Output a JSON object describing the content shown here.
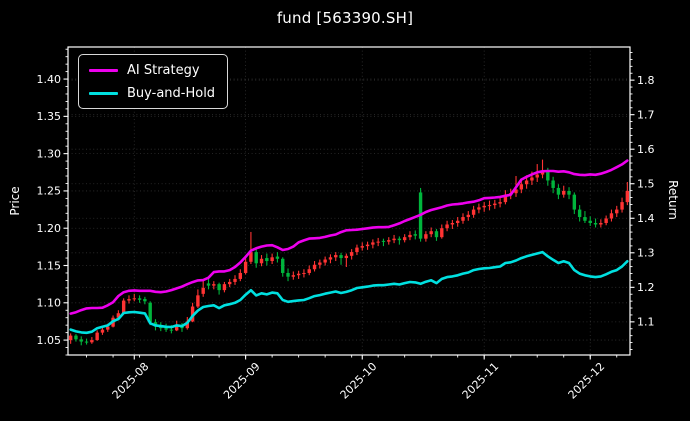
{
  "title": "fund [563390.SH]",
  "colors": {
    "background": "#000000",
    "ai_strategy": "#ed00ed",
    "buy_and_hold": "#00e0e0",
    "candle_up": "#ff3333",
    "candle_down": "#00b53c",
    "spine": "#ffffff",
    "grid": "#5a5a5a",
    "text": "#ffffff"
  },
  "legend": {
    "items": [
      {
        "label": "AI Strategy",
        "color": "#ed00ed"
      },
      {
        "label": "Buy-and-Hold",
        "color": "#00e0e0"
      }
    ]
  },
  "axes": {
    "left": {
      "label": "Price",
      "tick_labels": [
        "1.05",
        "1.10",
        "1.15",
        "1.20",
        "1.25",
        "1.30",
        "1.35",
        "1.40"
      ],
      "ticks": [
        1.05,
        1.1,
        1.15,
        1.2,
        1.25,
        1.3,
        1.35,
        1.4
      ],
      "lim": [
        1.03,
        1.443
      ]
    },
    "right": {
      "label": "Return",
      "tick_labels": [
        "1.1",
        "1.2",
        "1.3",
        "1.4",
        "1.5",
        "1.6",
        "1.7",
        "1.8"
      ],
      "ticks": [
        1.1,
        1.2,
        1.3,
        1.4,
        1.5,
        1.6,
        1.7,
        1.8
      ],
      "lim": [
        1.004,
        1.896
      ]
    },
    "x": {
      "tick_labels": [
        "2025-08",
        "2025-09",
        "2025-10",
        "2025-11",
        "2025-12"
      ],
      "tick_day_index": [
        12,
        33,
        55,
        78,
        98
      ]
    }
  },
  "chart_data": {
    "type": "candlestick+line",
    "title": "fund [563390.SH]",
    "xlabel": "",
    "ylabel_left": "Price",
    "ylabel_right": "Return",
    "grid": true,
    "legend_position": "upper-left",
    "x_dates": [
      "2025-07-16",
      "2025-07-17",
      "2025-07-18",
      "2025-07-21",
      "2025-07-22",
      "2025-07-23",
      "2025-07-24",
      "2025-07-25",
      "2025-07-28",
      "2025-07-29",
      "2025-07-30",
      "2025-07-31",
      "2025-08-01",
      "2025-08-04",
      "2025-08-05",
      "2025-08-06",
      "2025-08-07",
      "2025-08-08",
      "2025-08-11",
      "2025-08-12",
      "2025-08-13",
      "2025-08-14",
      "2025-08-15",
      "2025-08-18",
      "2025-08-19",
      "2025-08-20",
      "2025-08-21",
      "2025-08-22",
      "2025-08-25",
      "2025-08-26",
      "2025-08-27",
      "2025-08-28",
      "2025-08-29",
      "2025-09-01",
      "2025-09-02",
      "2025-09-03",
      "2025-09-04",
      "2025-09-05",
      "2025-09-08",
      "2025-09-09",
      "2025-09-10",
      "2025-09-11",
      "2025-09-12",
      "2025-09-15",
      "2025-09-16",
      "2025-09-17",
      "2025-09-18",
      "2025-09-19",
      "2025-09-22",
      "2025-09-23",
      "2025-09-24",
      "2025-09-25",
      "2025-09-26",
      "2025-09-29",
      "2025-09-30",
      "2025-10-01",
      "2025-10-02",
      "2025-10-03",
      "2025-10-06",
      "2025-10-07",
      "2025-10-08",
      "2025-10-09",
      "2025-10-10",
      "2025-10-13",
      "2025-10-14",
      "2025-10-15",
      "2025-10-16",
      "2025-10-17",
      "2025-10-20",
      "2025-10-21",
      "2025-10-22",
      "2025-10-23",
      "2025-10-24",
      "2025-10-27",
      "2025-10-28",
      "2025-10-29",
      "2025-10-30",
      "2025-10-31",
      "2025-11-03",
      "2025-11-04",
      "2025-11-05",
      "2025-11-06",
      "2025-11-07",
      "2025-11-10",
      "2025-11-11",
      "2025-11-12",
      "2025-11-13",
      "2025-11-14",
      "2025-11-17",
      "2025-11-18",
      "2025-11-19",
      "2025-11-20",
      "2025-11-21",
      "2025-11-24",
      "2025-11-25",
      "2025-11-26",
      "2025-11-27",
      "2025-11-28",
      "2025-12-01",
      "2025-12-02",
      "2025-12-03",
      "2025-12-04",
      "2025-12-05",
      "2025-12-08",
      "2025-12-09",
      "2025-12-10"
    ],
    "candles_ohlc": [
      [
        1.05,
        1.059,
        1.045,
        1.056
      ],
      [
        1.056,
        1.058,
        1.048,
        1.051
      ],
      [
        1.051,
        1.055,
        1.043,
        1.048
      ],
      [
        1.048,
        1.052,
        1.044,
        1.047
      ],
      [
        1.047,
        1.054,
        1.045,
        1.05
      ],
      [
        1.05,
        1.063,
        1.049,
        1.06
      ],
      [
        1.06,
        1.068,
        1.057,
        1.064
      ],
      [
        1.064,
        1.072,
        1.061,
        1.068
      ],
      [
        1.068,
        1.083,
        1.067,
        1.08
      ],
      [
        1.08,
        1.09,
        1.077,
        1.086
      ],
      [
        1.086,
        1.106,
        1.085,
        1.103
      ],
      [
        1.103,
        1.11,
        1.099,
        1.105
      ],
      [
        1.105,
        1.112,
        1.102,
        1.106
      ],
      [
        1.106,
        1.11,
        1.1,
        1.104
      ],
      [
        1.105,
        1.108,
        1.098,
        1.102
      ],
      [
        1.1,
        1.102,
        1.07,
        1.074
      ],
      [
        1.074,
        1.078,
        1.063,
        1.068
      ],
      [
        1.068,
        1.074,
        1.062,
        1.066
      ],
      [
        1.066,
        1.072,
        1.061,
        1.064
      ],
      [
        1.064,
        1.07,
        1.059,
        1.063
      ],
      [
        1.063,
        1.076,
        1.062,
        1.068
      ],
      [
        1.068,
        1.073,
        1.061,
        1.066
      ],
      [
        1.066,
        1.081,
        1.064,
        1.075
      ],
      [
        1.075,
        1.1,
        1.074,
        1.095
      ],
      [
        1.095,
        1.118,
        1.093,
        1.11
      ],
      [
        1.112,
        1.13,
        1.108,
        1.12
      ],
      [
        1.126,
        1.135,
        1.118,
        1.123
      ],
      [
        1.123,
        1.129,
        1.118,
        1.125
      ],
      [
        1.125,
        1.127,
        1.111,
        1.117
      ],
      [
        1.117,
        1.128,
        1.114,
        1.125
      ],
      [
        1.125,
        1.132,
        1.121,
        1.128
      ],
      [
        1.128,
        1.137,
        1.124,
        1.132
      ],
      [
        1.132,
        1.145,
        1.129,
        1.14
      ],
      [
        1.14,
        1.162,
        1.138,
        1.155
      ],
      [
        1.155,
        1.195,
        1.152,
        1.168
      ],
      [
        1.168,
        1.172,
        1.147,
        1.153
      ],
      [
        1.153,
        1.164,
        1.149,
        1.159
      ],
      [
        1.16,
        1.166,
        1.15,
        1.156
      ],
      [
        1.156,
        1.166,
        1.152,
        1.161
      ],
      [
        1.162,
        1.168,
        1.154,
        1.159
      ],
      [
        1.159,
        1.161,
        1.135,
        1.14
      ],
      [
        1.14,
        1.146,
        1.129,
        1.135
      ],
      [
        1.135,
        1.142,
        1.131,
        1.137
      ],
      [
        1.137,
        1.143,
        1.132,
        1.139
      ],
      [
        1.139,
        1.145,
        1.134,
        1.14
      ],
      [
        1.14,
        1.15,
        1.137,
        1.145
      ],
      [
        1.145,
        1.156,
        1.142,
        1.151
      ],
      [
        1.151,
        1.158,
        1.146,
        1.154
      ],
      [
        1.154,
        1.162,
        1.15,
        1.158
      ],
      [
        1.158,
        1.165,
        1.153,
        1.161
      ],
      [
        1.161,
        1.168,
        1.156,
        1.164
      ],
      [
        1.164,
        1.167,
        1.151,
        1.16
      ],
      [
        1.16,
        1.166,
        1.148,
        1.163
      ],
      [
        1.163,
        1.172,
        1.158,
        1.168
      ],
      [
        1.168,
        1.178,
        1.164,
        1.174
      ],
      [
        1.174,
        1.181,
        1.17,
        1.176
      ],
      [
        1.176,
        1.182,
        1.171,
        1.178
      ],
      [
        1.178,
        1.185,
        1.173,
        1.181
      ],
      [
        1.181,
        1.187,
        1.176,
        1.182
      ],
      [
        1.183,
        1.186,
        1.176,
        1.182
      ],
      [
        1.182,
        1.188,
        1.178,
        1.184
      ],
      [
        1.184,
        1.191,
        1.18,
        1.186
      ],
      [
        1.186,
        1.189,
        1.178,
        1.184
      ],
      [
        1.184,
        1.192,
        1.181,
        1.188
      ],
      [
        1.188,
        1.196,
        1.184,
        1.191
      ],
      [
        1.192,
        1.197,
        1.185,
        1.19
      ],
      [
        1.248,
        1.254,
        1.182,
        1.186
      ],
      [
        1.186,
        1.196,
        1.182,
        1.192
      ],
      [
        1.192,
        1.201,
        1.188,
        1.196
      ],
      [
        1.196,
        1.199,
        1.183,
        1.188
      ],
      [
        1.188,
        1.205,
        1.186,
        1.2
      ],
      [
        1.2,
        1.21,
        1.196,
        1.205
      ],
      [
        1.205,
        1.211,
        1.199,
        1.207
      ],
      [
        1.207,
        1.215,
        1.202,
        1.21
      ],
      [
        1.21,
        1.22,
        1.206,
        1.215
      ],
      [
        1.215,
        1.223,
        1.21,
        1.218
      ],
      [
        1.218,
        1.23,
        1.214,
        1.225
      ],
      [
        1.225,
        1.233,
        1.22,
        1.228
      ],
      [
        1.228,
        1.235,
        1.222,
        1.23
      ],
      [
        1.23,
        1.237,
        1.224,
        1.231
      ],
      [
        1.231,
        1.238,
        1.226,
        1.233
      ],
      [
        1.233,
        1.241,
        1.228,
        1.235
      ],
      [
        1.235,
        1.251,
        1.232,
        1.245
      ],
      [
        1.245,
        1.253,
        1.239,
        1.247
      ],
      [
        1.247,
        1.27,
        1.242,
        1.252
      ],
      [
        1.252,
        1.266,
        1.247,
        1.259
      ],
      [
        1.259,
        1.271,
        1.253,
        1.264
      ],
      [
        1.264,
        1.276,
        1.258,
        1.268
      ],
      [
        1.268,
        1.286,
        1.262,
        1.272
      ],
      [
        1.272,
        1.292,
        1.267,
        1.276
      ],
      [
        1.276,
        1.281,
        1.257,
        1.264
      ],
      [
        1.264,
        1.269,
        1.247,
        1.254
      ],
      [
        1.254,
        1.259,
        1.239,
        1.245
      ],
      [
        1.245,
        1.257,
        1.241,
        1.25
      ],
      [
        1.25,
        1.255,
        1.239,
        1.245
      ],
      [
        1.245,
        1.248,
        1.219,
        1.225
      ],
      [
        1.225,
        1.231,
        1.209,
        1.215
      ],
      [
        1.215,
        1.223,
        1.207,
        1.21
      ],
      [
        1.21,
        1.216,
        1.203,
        1.207
      ],
      [
        1.207,
        1.213,
        1.201,
        1.205
      ],
      [
        1.205,
        1.212,
        1.201,
        1.207
      ],
      [
        1.207,
        1.217,
        1.204,
        1.213
      ],
      [
        1.213,
        1.225,
        1.209,
        1.22
      ],
      [
        1.22,
        1.23,
        1.215,
        1.225
      ],
      [
        1.225,
        1.241,
        1.221,
        1.235
      ],
      [
        1.235,
        1.262,
        1.231,
        1.25
      ]
    ],
    "series": [
      {
        "name": "AI Strategy",
        "axis": "right",
        "color": "#ed00ed",
        "values": [
          1.124,
          1.128,
          1.134,
          1.139,
          1.14,
          1.14,
          1.141,
          1.148,
          1.157,
          1.175,
          1.186,
          1.19,
          1.191,
          1.19,
          1.19,
          1.19,
          1.187,
          1.186,
          1.188,
          1.192,
          1.197,
          1.202,
          1.209,
          1.215,
          1.22,
          1.221,
          1.228,
          1.244,
          1.246,
          1.246,
          1.25,
          1.259,
          1.272,
          1.288,
          1.306,
          1.313,
          1.318,
          1.321,
          1.322,
          1.316,
          1.308,
          1.311,
          1.318,
          1.33,
          1.336,
          1.341,
          1.342,
          1.343,
          1.346,
          1.35,
          1.353,
          1.36,
          1.365,
          1.366,
          1.367,
          1.369,
          1.371,
          1.373,
          1.374,
          1.374,
          1.375,
          1.38,
          1.385,
          1.392,
          1.398,
          1.404,
          1.41,
          1.418,
          1.424,
          1.428,
          1.432,
          1.437,
          1.44,
          1.441,
          1.443,
          1.446,
          1.448,
          1.452,
          1.458,
          1.459,
          1.46,
          1.462,
          1.465,
          1.468,
          1.49,
          1.512,
          1.52,
          1.527,
          1.533,
          1.536,
          1.537,
          1.537,
          1.535,
          1.536,
          1.533,
          1.528,
          1.526,
          1.525,
          1.527,
          1.526,
          1.529,
          1.534,
          1.54,
          1.548,
          1.556,
          1.567
        ]
      },
      {
        "name": "Buy-and-Hold",
        "axis": "right",
        "color": "#00e0e0",
        "values": [
          1.0776,
          1.0724,
          1.0694,
          1.0684,
          1.0714,
          1.0816,
          1.0857,
          1.0898,
          1.102,
          1.1082,
          1.1255,
          1.1276,
          1.1286,
          1.1265,
          1.1245,
          1.0959,
          1.0898,
          1.0878,
          1.0857,
          1.0847,
          1.0898,
          1.0878,
          1.0969,
          1.1173,
          1.1327,
          1.1429,
          1.1459,
          1.148,
          1.1398,
          1.148,
          1.151,
          1.1551,
          1.1633,
          1.1786,
          1.1918,
          1.1765,
          1.1827,
          1.1796,
          1.1847,
          1.1827,
          1.1633,
          1.1582,
          1.1602,
          1.1622,
          1.1633,
          1.1684,
          1.1745,
          1.1776,
          1.1816,
          1.1847,
          1.1878,
          1.1837,
          1.1867,
          1.1918,
          1.198,
          1.2,
          1.202,
          1.2051,
          1.2061,
          1.2061,
          1.2082,
          1.2102,
          1.2082,
          1.2122,
          1.2153,
          1.2143,
          1.2102,
          1.2163,
          1.2204,
          1.2122,
          1.2245,
          1.2296,
          1.2316,
          1.2347,
          1.2398,
          1.2429,
          1.25,
          1.2531,
          1.2551,
          1.2561,
          1.2582,
          1.2602,
          1.2704,
          1.2724,
          1.2776,
          1.2847,
          1.2898,
          1.2939,
          1.298,
          1.302,
          1.2898,
          1.2796,
          1.2704,
          1.2755,
          1.2704,
          1.25,
          1.2398,
          1.2347,
          1.2316,
          1.2296,
          1.2316,
          1.2378,
          1.2449,
          1.25,
          1.2602,
          1.2755
        ]
      }
    ]
  }
}
